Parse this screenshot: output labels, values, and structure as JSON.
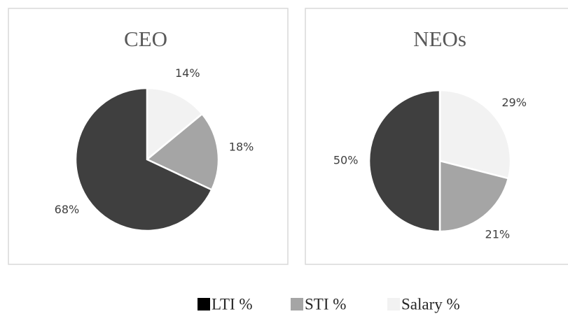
{
  "legend": {
    "labels": [
      "LTI %",
      "STI %",
      "Salary %"
    ],
    "colors": [
      "#3f3f3f",
      "#a5a5a5",
      "#f2f2f2"
    ]
  },
  "chart_data": [
    {
      "type": "pie",
      "title": "CEO",
      "values": [
        68,
        18,
        14
      ],
      "value_labels": [
        "68%",
        "18%",
        "14%"
      ]
    },
    {
      "type": "pie",
      "title": "NEOs",
      "values": [
        50,
        21,
        29
      ],
      "value_labels": [
        "50%",
        "21%",
        "29%"
      ]
    }
  ]
}
